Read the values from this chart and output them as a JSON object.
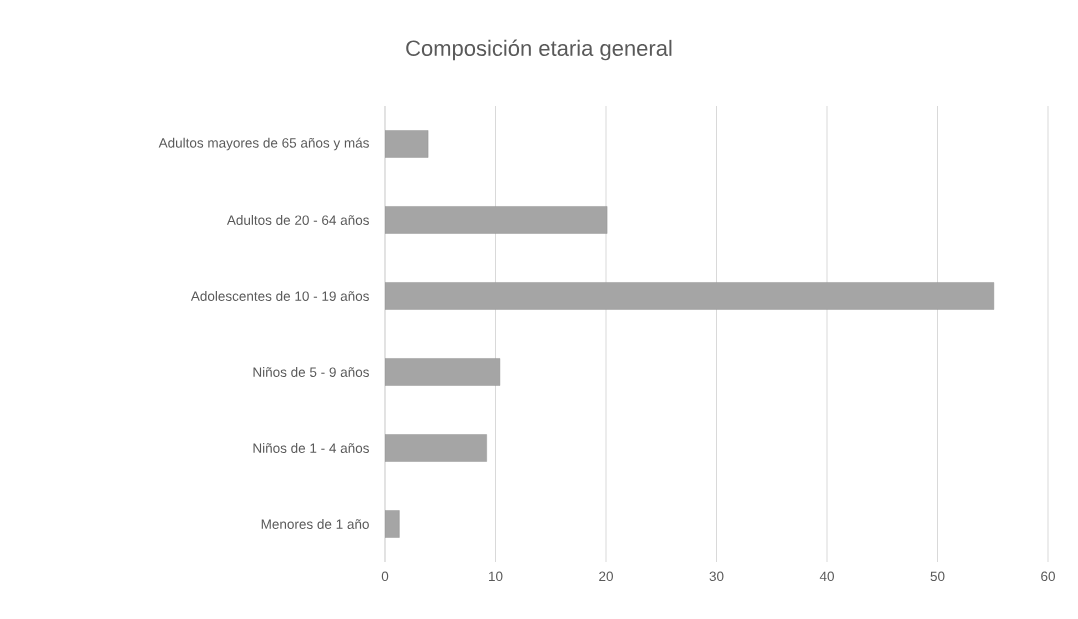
{
  "chart_data": {
    "type": "bar",
    "orientation": "horizontal",
    "title": "Composición etaria general",
    "categories": [
      "Adultos mayores de 65 años y más",
      "Adultos de 20 - 64 años",
      "Adolescentes de 10 - 19 años",
      "Niños de 5 - 9 años",
      "Niños de 1 - 4 años",
      "Menores de 1 año"
    ],
    "values": [
      3.9,
      20.1,
      55.1,
      10.4,
      9.2,
      1.3
    ],
    "color": "#a5a5a5",
    "xlim": [
      0,
      60
    ],
    "xticks": [
      0,
      10,
      20,
      30,
      40,
      50,
      60
    ],
    "grid": "x"
  }
}
